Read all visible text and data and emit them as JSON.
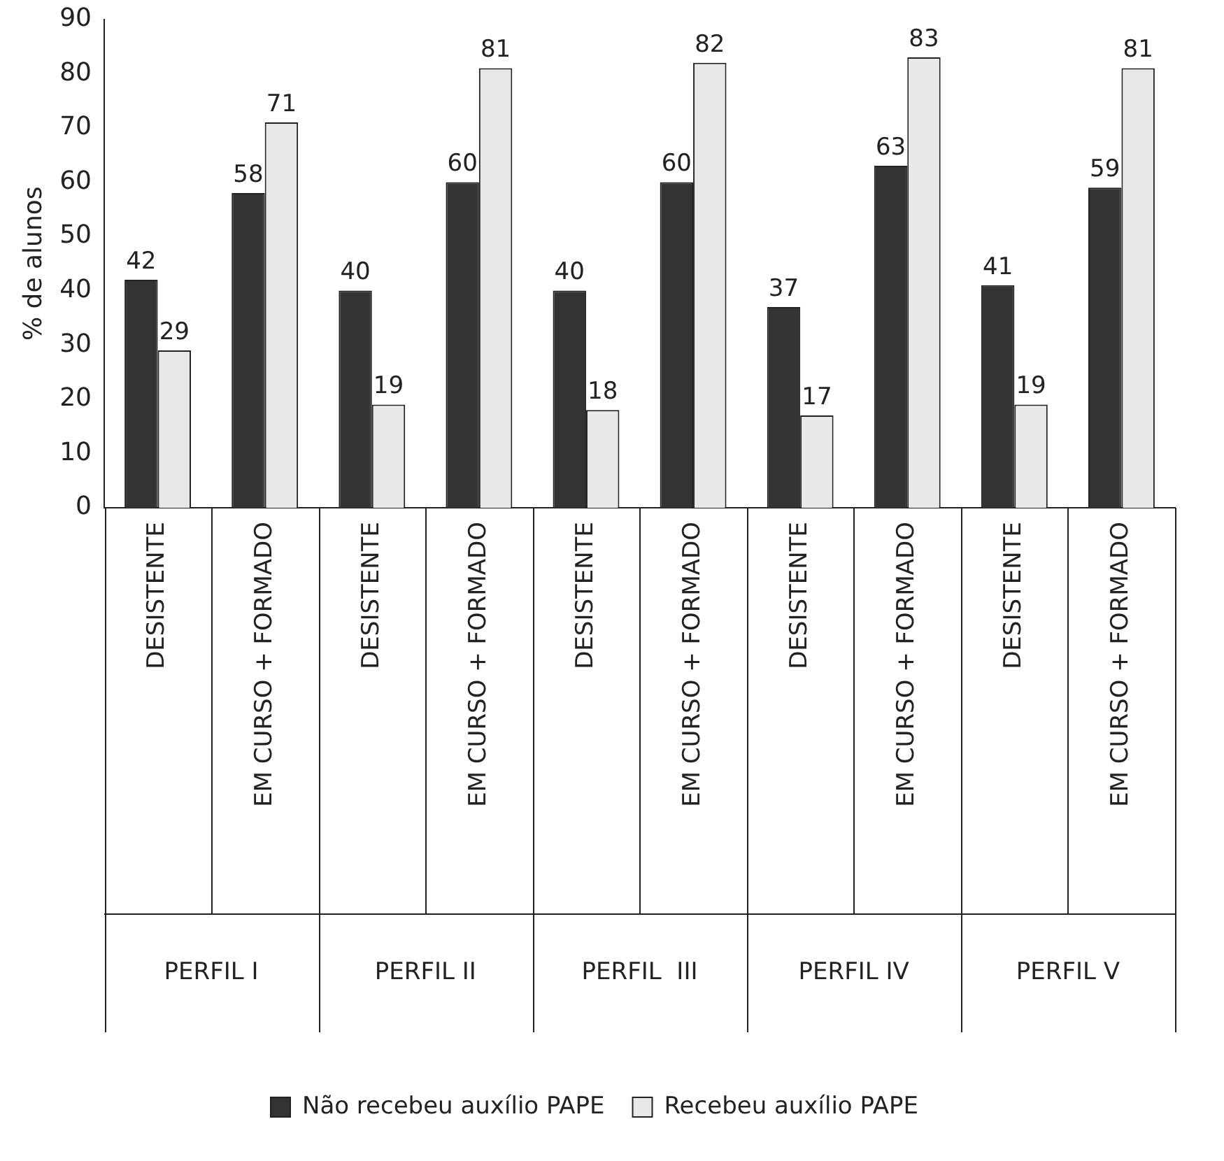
{
  "chart_data": {
    "type": "bar",
    "ylabel": "% de alunos",
    "categories": [
      "DESISTENTE",
      "EM CURSO + FORMADO",
      "DESISTENTE",
      "EM CURSO + FORMADO",
      "DESISTENTE",
      "EM CURSO + FORMADO",
      "DESISTENTE",
      "EM CURSO + FORMADO",
      "DESISTENTE",
      "EM CURSO + FORMADO"
    ],
    "series": [
      {
        "name": "Não recebeu auxílio PAPE",
        "color": "#333333",
        "values": [
          42,
          58,
          40,
          60,
          40,
          60,
          37,
          63,
          41,
          59
        ]
      },
      {
        "name": "Recebeu auxílio PAPE",
        "color": "#e8e8e8",
        "values": [
          29,
          71,
          19,
          81,
          18,
          82,
          17,
          83,
          19,
          81
        ]
      }
    ],
    "annotations": [
      "PERFIL I",
      "PERFIL II",
      "PERFIL  III",
      "PERFIL IV",
      "PERFIL V"
    ],
    "ylim": [
      0,
      90
    ],
    "yticks": [
      0,
      10,
      20,
      30,
      40,
      50,
      60,
      70,
      80,
      90
    ],
    "grid": false,
    "legend": "bottom",
    "data_labels": true
  }
}
